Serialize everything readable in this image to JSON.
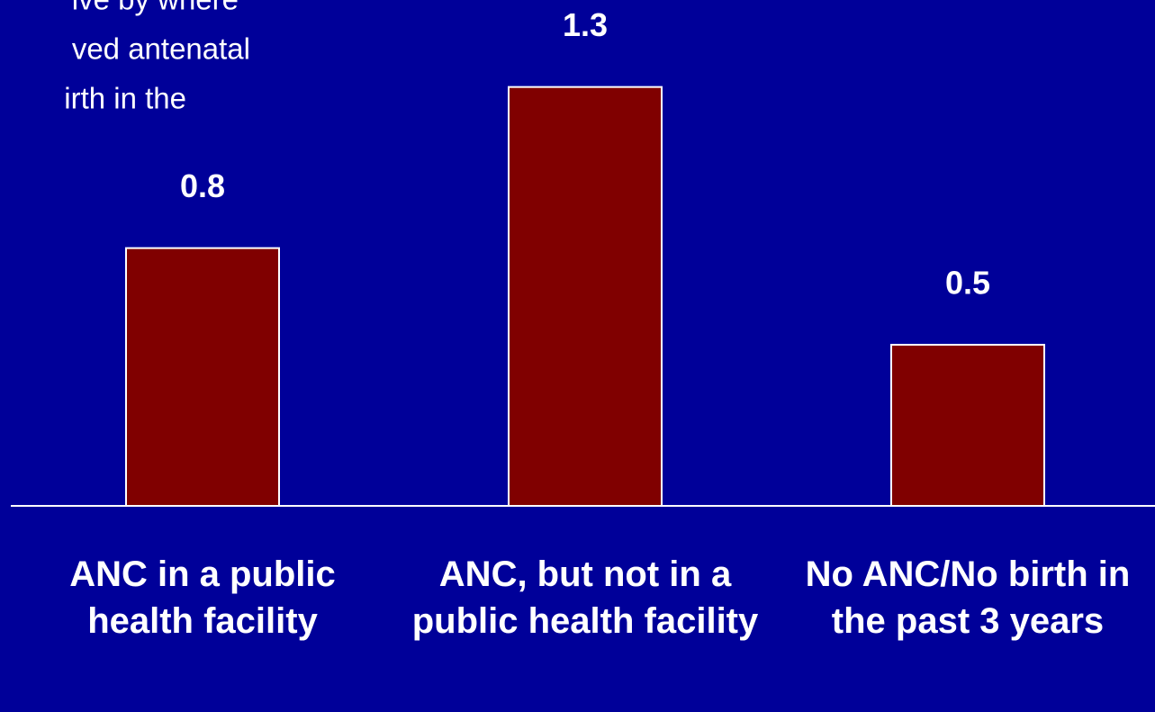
{
  "chart_data": {
    "type": "bar",
    "annotation_lines": [
      "ive by where",
      "ved antenatal",
      "irth in the"
    ],
    "categories": [
      "ANC in a public health facility",
      "ANC, but not in a public health facility",
      "No ANC/No birth in the past 3 years"
    ],
    "values": [
      0.8,
      1.3,
      0.5
    ],
    "color": "#800000",
    "ylim": [
      0,
      1.57
    ]
  }
}
